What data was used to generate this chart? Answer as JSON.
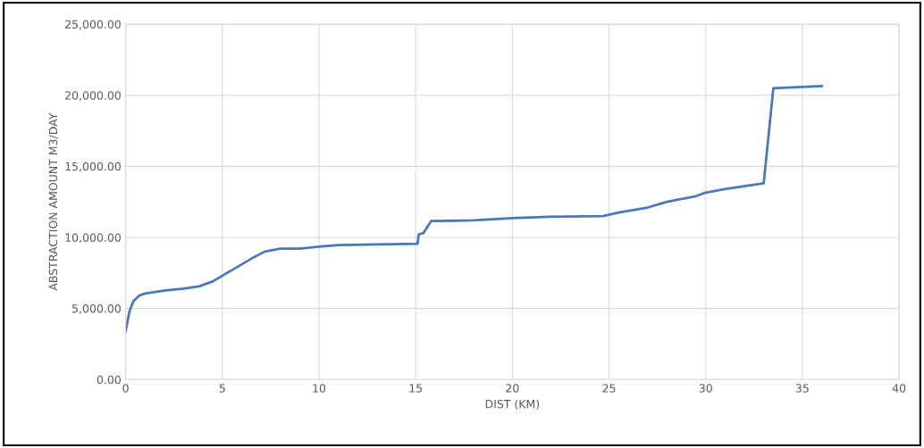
{
  "chart_data": {
    "type": "line",
    "xlabel": "DIST (KM)",
    "ylabel": "ABSTRACTION AMOUNT M3/DAY",
    "xlim": [
      0,
      40
    ],
    "xticks": [
      0,
      5,
      10,
      15,
      20,
      25,
      30,
      35,
      40
    ],
    "ylim": [
      0,
      25000
    ],
    "yticks": [
      {
        "value": 0,
        "label": "0.00"
      },
      {
        "value": 5000,
        "label": "5,000.00"
      },
      {
        "value": 10000,
        "label": "10,000.00"
      },
      {
        "value": 15000,
        "label": "15,000.00"
      },
      {
        "value": 20000,
        "label": "20,000.00"
      },
      {
        "value": 25000,
        "label": "25,000.00"
      }
    ],
    "grid": true,
    "marker": "none",
    "line_style": "solid",
    "series": [
      {
        "color": "#4a78b8",
        "x": [
          0,
          0.2,
          0.4,
          0.7,
          1,
          2,
          3,
          3.8,
          4.5,
          5.5,
          6.5,
          7.2,
          8,
          9,
          10,
          11,
          13,
          15.1,
          15.15,
          15.4,
          15.8,
          16.2,
          18,
          20,
          22,
          24.7,
          25.5,
          27,
          28,
          29.5,
          30,
          31,
          33,
          33.5,
          36
        ],
        "values": [
          3400,
          4800,
          5500,
          5900,
          6050,
          6250,
          6400,
          6550,
          6900,
          7700,
          8500,
          9000,
          9200,
          9200,
          9350,
          9450,
          9500,
          9550,
          10200,
          10300,
          11150,
          11150,
          11200,
          11350,
          11450,
          11500,
          11750,
          12100,
          12500,
          12900,
          13150,
          13400,
          13800,
          20500,
          20650
        ]
      }
    ]
  }
}
